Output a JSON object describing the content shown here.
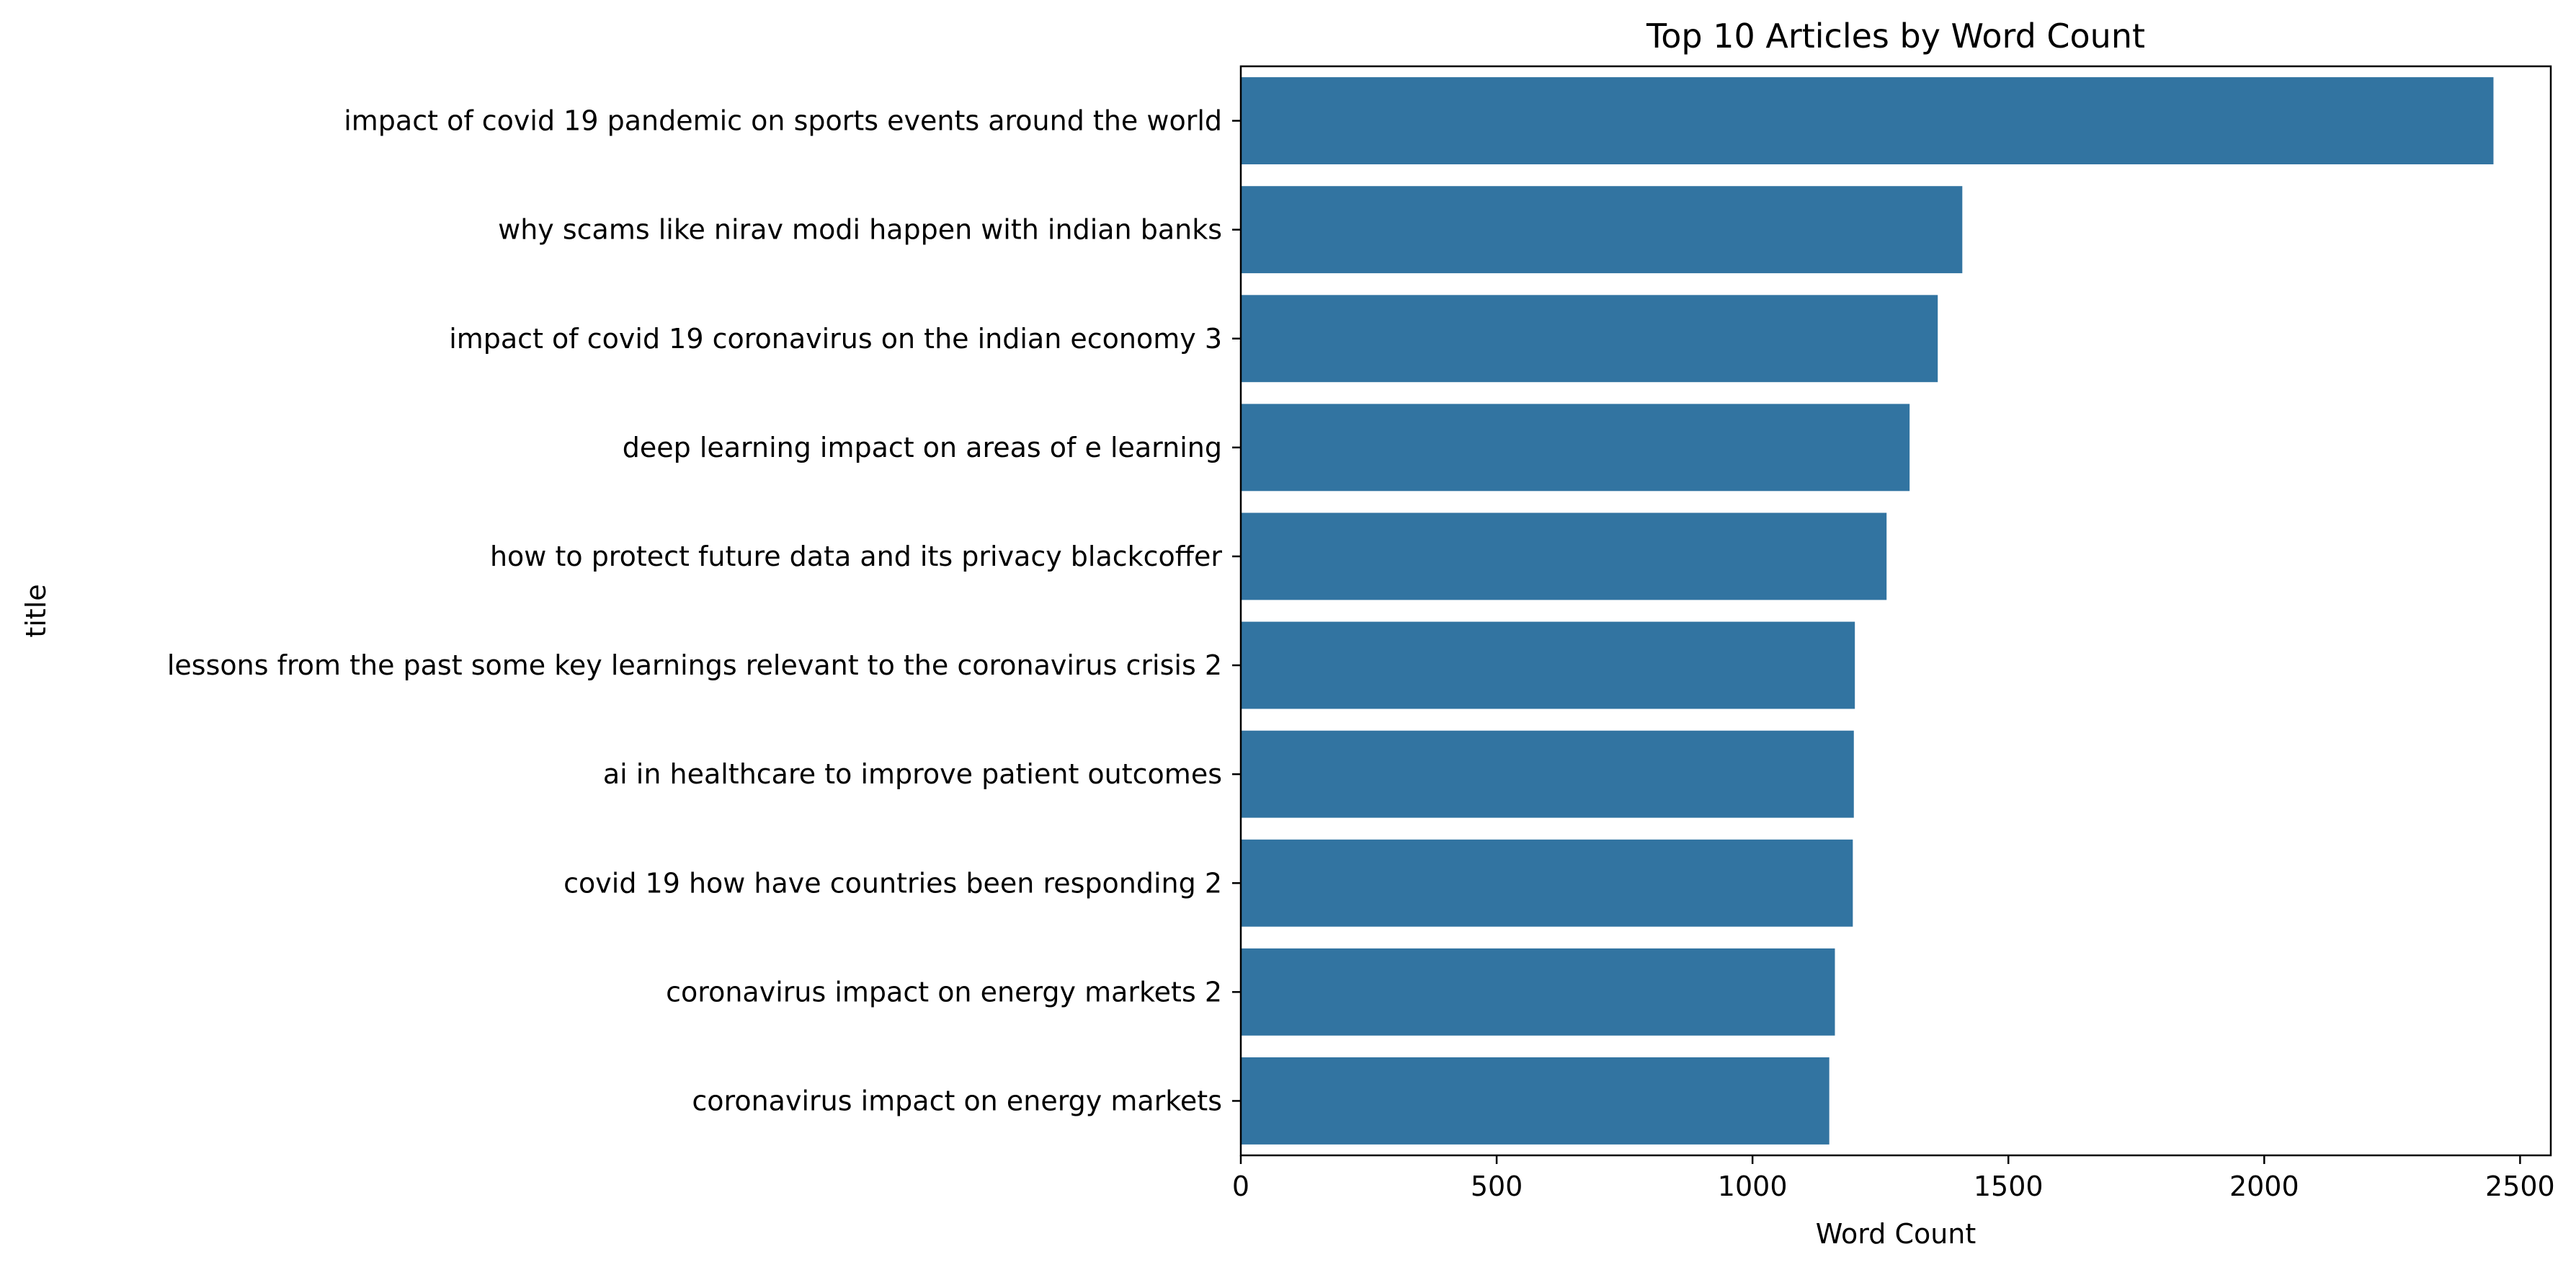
{
  "chart_data": {
    "type": "bar",
    "orientation": "horizontal",
    "title": "Top 10 Articles by Word Count",
    "xlabel": "Word Count",
    "ylabel": "title",
    "xlim": [
      0,
      2560
    ],
    "xticks": [
      0,
      500,
      1000,
      1500,
      2000,
      2500
    ],
    "grid": false,
    "legend": "none",
    "bar_color": "#3274a1",
    "categories": [
      "impact of covid 19 pandemic on sports events around the world",
      "why scams like nirav modi happen with indian banks",
      "impact of covid 19 coronavirus on the indian economy 3",
      "deep learning impact on areas of e learning",
      "how to protect future data and its privacy blackcoffer",
      "lessons from the past some key learnings relevant to the coronavirus crisis 2",
      "ai in healthcare to improve patient outcomes",
      "covid 19 how have countries been responding 2",
      "coronavirus impact on energy markets 2",
      "coronavirus impact on energy markets"
    ],
    "values": [
      2448,
      1410,
      1362,
      1307,
      1262,
      1200,
      1198,
      1196,
      1161,
      1150
    ]
  }
}
